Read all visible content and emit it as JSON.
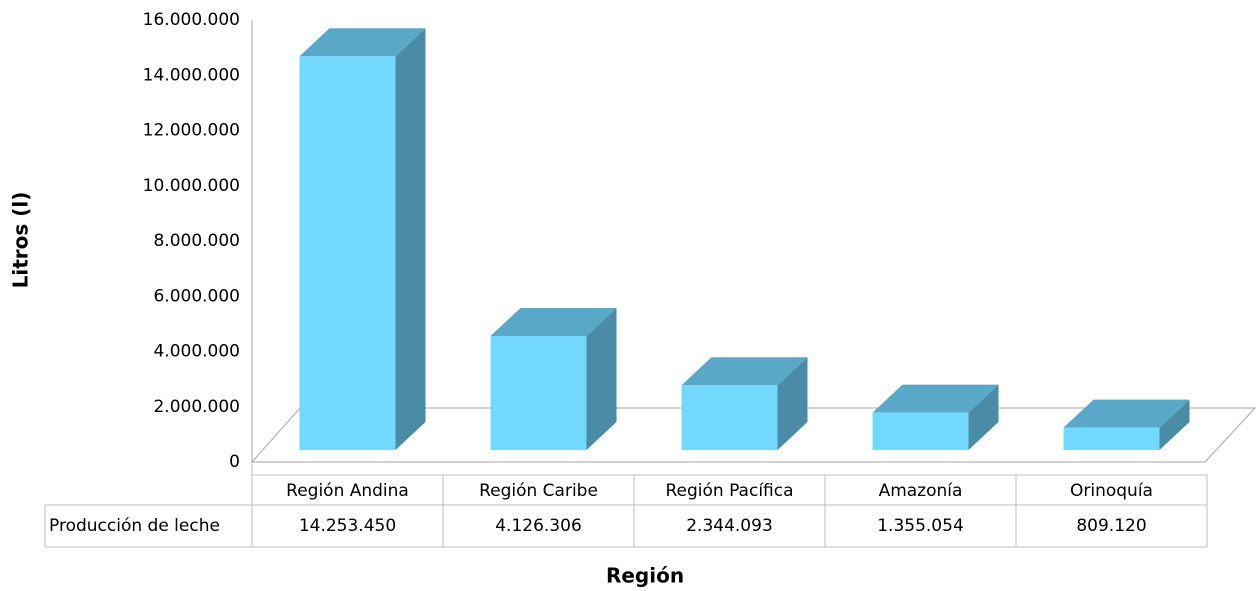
{
  "chart_data": {
    "type": "bar3d",
    "categories": [
      "Región Andina",
      "Región Caribe",
      "Región Pacífica",
      "Amazonía",
      "Orinoquía"
    ],
    "series": [
      {
        "name": "Producción de leche",
        "color": "#72d8fd",
        "values": [
          14253450,
          4126306,
          2344093,
          1355054,
          809120
        ],
        "value_labels": [
          "14.253.450",
          "4.126.306",
          "2.344.093",
          "1.355.054",
          "809.120"
        ]
      }
    ],
    "x_label": "Región",
    "y_label": "Litros (l)",
    "ylim": [
      0,
      16000000
    ],
    "yticks": [
      0,
      {
        "value": 2000000,
        "label": "2.000.000"
      },
      {
        "value": 4000000,
        "label": "4.000.000"
      },
      {
        "value": 6000000,
        "label": "6.000.000"
      },
      {
        "value": 8000000,
        "label": "8.000.000"
      },
      {
        "value": 10000000,
        "label": "10.000.000"
      },
      {
        "value": 12000000,
        "label": "12.000.000"
      },
      {
        "value": 14000000,
        "label": "14.000.000"
      },
      {
        "value": 16000000,
        "label": "16.000.000"
      }
    ],
    "grid": false
  }
}
